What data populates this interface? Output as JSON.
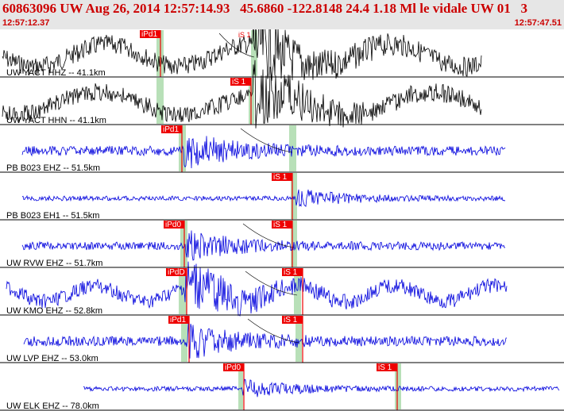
{
  "header": {
    "title": "60863096 UW Aug 26, 2014 12:57:14.93   45.6860 -122.8148 24.4 1.18 Ml le vidale UW 01   3",
    "start_time": "12:57:12.37",
    "end_time": "12:57:47.51"
  },
  "colors": {
    "header_bg": "#e6e6e6",
    "header_text": "#cc0000",
    "pick_fill": "#ee0000",
    "pick_window": "#b8e0b8",
    "trace_black": "#000000",
    "trace_blue": "#0000dd"
  },
  "traces": [
    {
      "label": "UW YACT HHZ -- 41.1km",
      "color": "black",
      "picks": [
        "iPd1"
      ],
      "s_mark": "iS 1"
    },
    {
      "label": "UW YACT HHN -- 41.1km",
      "color": "black",
      "picks": [
        "iS 1"
      ]
    },
    {
      "label": "PB B023 EHZ -- 51.5km",
      "color": "blue",
      "picks": [
        "iPd1"
      ]
    },
    {
      "label": "PB B023 EH1 -- 51.5km",
      "color": "blue",
      "picks": [
        "iS 1"
      ]
    },
    {
      "label": "UW RVW EHZ -- 51.7km",
      "color": "blue",
      "picks": [
        "iPd0",
        "iS 1"
      ]
    },
    {
      "label": "UW KMO EHZ -- 52.8km",
      "color": "blue",
      "picks": [
        "iPdD",
        "iS 1"
      ]
    },
    {
      "label": "UW LVP EHZ -- 53.0km",
      "color": "blue",
      "picks": [
        "iPd1",
        "iS 1"
      ]
    },
    {
      "label": "UW ELK EHZ -- 78.0km",
      "color": "blue",
      "picks": [
        "iPd0",
        "iS 1"
      ]
    }
  ]
}
